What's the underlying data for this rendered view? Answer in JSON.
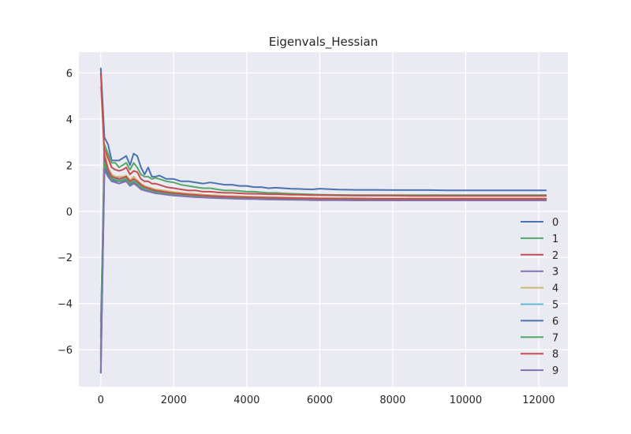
{
  "chart_data": {
    "type": "line",
    "title": "Eigenvals_Hessian",
    "xlabel": "",
    "ylabel": "",
    "xlim": [
      -600,
      12800
    ],
    "ylim": [
      -7.6,
      6.9
    ],
    "x_ticks": [
      0,
      2000,
      4000,
      6000,
      8000,
      10000,
      12000
    ],
    "y_ticks": [
      -6,
      -4,
      -2,
      0,
      2,
      4,
      6
    ],
    "x_tick_labels": [
      "0",
      "2000",
      "4000",
      "6000",
      "8000",
      "10000",
      "12000"
    ],
    "y_tick_labels": [
      "−6",
      "−4",
      "−2",
      "0",
      "2",
      "4",
      "6"
    ],
    "grid": true,
    "legend_position": "right",
    "x": [
      0,
      100,
      200,
      300,
      400,
      500,
      600,
      700,
      800,
      900,
      1000,
      1100,
      1200,
      1300,
      1400,
      1500,
      1600,
      1800,
      2000,
      2200,
      2400,
      2600,
      2800,
      3000,
      3200,
      3400,
      3600,
      3800,
      4000,
      4200,
      4400,
      4600,
      4800,
      5000,
      5200,
      5400,
      5600,
      5800,
      6000,
      6500,
      7000,
      7500,
      8000,
      8500,
      9000,
      9500,
      10000,
      10500,
      11000,
      11500,
      12000,
      12200
    ],
    "series": [
      {
        "name": "0",
        "color": "#4c72b0",
        "values": [
          6.2,
          3.2,
          2.9,
          2.2,
          2.2,
          2.2,
          2.3,
          2.4,
          2.0,
          2.5,
          2.4,
          1.9,
          1.6,
          1.9,
          1.5,
          1.5,
          1.55,
          1.4,
          1.4,
          1.3,
          1.3,
          1.25,
          1.2,
          1.25,
          1.2,
          1.15,
          1.15,
          1.1,
          1.1,
          1.05,
          1.05,
          1.0,
          1.02,
          1.0,
          0.98,
          0.97,
          0.96,
          0.95,
          0.98,
          0.94,
          0.93,
          0.93,
          0.92,
          0.92,
          0.92,
          0.91,
          0.91,
          0.91,
          0.91,
          0.91,
          0.91,
          0.91
        ]
      },
      {
        "name": "1",
        "color": "#55a868",
        "values": [
          -5.5,
          2.9,
          2.5,
          2.1,
          2.1,
          1.9,
          2.0,
          2.1,
          1.8,
          2.1,
          1.9,
          1.6,
          1.5,
          1.5,
          1.4,
          1.45,
          1.4,
          1.3,
          1.25,
          1.15,
          1.1,
          1.05,
          1.0,
          1.0,
          0.95,
          0.9,
          0.9,
          0.88,
          0.85,
          0.85,
          0.82,
          0.8,
          0.8,
          0.78,
          0.76,
          0.75,
          0.74,
          0.73,
          0.72,
          0.71,
          0.7,
          0.7,
          0.7,
          0.7,
          0.7,
          0.7,
          0.7,
          0.7,
          0.7,
          0.7,
          0.7,
          0.7
        ]
      },
      {
        "name": "2",
        "color": "#c44e52",
        "values": [
          -6.0,
          2.7,
          2.3,
          1.9,
          1.8,
          1.75,
          1.8,
          1.9,
          1.6,
          1.75,
          1.7,
          1.4,
          1.3,
          1.3,
          1.2,
          1.2,
          1.15,
          1.05,
          1.0,
          0.95,
          0.9,
          0.9,
          0.85,
          0.85,
          0.82,
          0.8,
          0.8,
          0.78,
          0.76,
          0.76,
          0.75,
          0.74,
          0.74,
          0.73,
          0.72,
          0.72,
          0.71,
          0.7,
          0.7,
          0.69,
          0.68,
          0.68,
          0.68,
          0.67,
          0.67,
          0.67,
          0.67,
          0.67,
          0.67,
          0.67,
          0.67,
          0.67
        ]
      },
      {
        "name": "3",
        "color": "#8172b2",
        "values": [
          -6.5,
          2.2,
          1.9,
          1.5,
          1.5,
          1.4,
          1.45,
          1.5,
          1.3,
          1.4,
          1.3,
          1.1,
          1.0,
          1.0,
          0.95,
          0.9,
          0.88,
          0.82,
          0.78,
          0.75,
          0.72,
          0.7,
          0.68,
          0.66,
          0.65,
          0.63,
          0.62,
          0.62,
          0.6,
          0.6,
          0.59,
          0.58,
          0.58,
          0.57,
          0.57,
          0.56,
          0.56,
          0.55,
          0.55,
          0.54,
          0.54,
          0.54,
          0.54,
          0.53,
          0.53,
          0.53,
          0.53,
          0.53,
          0.53,
          0.53,
          0.53,
          0.53
        ]
      },
      {
        "name": "4",
        "color": "#ccb974",
        "values": [
          5.4,
          2.6,
          1.9,
          1.6,
          1.5,
          1.5,
          1.5,
          1.55,
          1.35,
          1.5,
          1.35,
          1.2,
          1.1,
          1.05,
          1.0,
          0.95,
          0.93,
          0.88,
          0.84,
          0.8,
          0.77,
          0.75,
          0.72,
          0.7,
          0.69,
          0.67,
          0.66,
          0.65,
          0.64,
          0.63,
          0.62,
          0.61,
          0.61,
          0.6,
          0.6,
          0.59,
          0.59,
          0.58,
          0.58,
          0.57,
          0.57,
          0.56,
          0.56,
          0.56,
          0.56,
          0.56,
          0.56,
          0.56,
          0.56,
          0.56,
          0.56,
          0.56
        ]
      },
      {
        "name": "5",
        "color": "#64b5cd",
        "values": [
          -6.2,
          2.0,
          1.7,
          1.45,
          1.4,
          1.35,
          1.4,
          1.45,
          1.25,
          1.35,
          1.25,
          1.1,
          1.0,
          0.97,
          0.92,
          0.88,
          0.85,
          0.8,
          0.76,
          0.73,
          0.7,
          0.68,
          0.66,
          0.64,
          0.63,
          0.61,
          0.6,
          0.6,
          0.58,
          0.58,
          0.57,
          0.56,
          0.56,
          0.55,
          0.55,
          0.54,
          0.54,
          0.53,
          0.53,
          0.52,
          0.52,
          0.52,
          0.52,
          0.51,
          0.51,
          0.51,
          0.51,
          0.51,
          0.51,
          0.51,
          0.51,
          0.51
        ]
      },
      {
        "name": "6",
        "color": "#4c72b0",
        "values": [
          -7.0,
          1.9,
          1.6,
          1.35,
          1.3,
          1.3,
          1.3,
          1.35,
          1.15,
          1.25,
          1.15,
          1.0,
          0.95,
          0.9,
          0.86,
          0.82,
          0.8,
          0.75,
          0.72,
          0.69,
          0.66,
          0.64,
          0.62,
          0.6,
          0.59,
          0.58,
          0.57,
          0.56,
          0.55,
          0.55,
          0.54,
          0.53,
          0.53,
          0.52,
          0.52,
          0.51,
          0.51,
          0.5,
          0.5,
          0.5,
          0.5,
          0.49,
          0.49,
          0.49,
          0.49,
          0.49,
          0.49,
          0.49,
          0.49,
          0.49,
          0.49,
          0.49
        ]
      },
      {
        "name": "7",
        "color": "#55a868",
        "values": [
          -4.8,
          2.1,
          1.75,
          1.4,
          1.35,
          1.3,
          1.35,
          1.4,
          1.2,
          1.3,
          1.2,
          1.05,
          0.95,
          0.92,
          0.88,
          0.85,
          0.82,
          0.77,
          0.74,
          0.71,
          0.68,
          0.66,
          0.64,
          0.62,
          0.61,
          0.59,
          0.58,
          0.58,
          0.57,
          0.56,
          0.55,
          0.55,
          0.54,
          0.54,
          0.53,
          0.53,
          0.52,
          0.52,
          0.52,
          0.51,
          0.51,
          0.51,
          0.51,
          0.5,
          0.5,
          0.5,
          0.5,
          0.5,
          0.5,
          0.5,
          0.5,
          0.5
        ]
      },
      {
        "name": "8",
        "color": "#c44e52",
        "values": [
          6.0,
          2.4,
          1.8,
          1.5,
          1.45,
          1.4,
          1.45,
          1.5,
          1.3,
          1.4,
          1.3,
          1.15,
          1.05,
          1.0,
          0.95,
          0.9,
          0.88,
          0.83,
          0.79,
          0.76,
          0.73,
          0.71,
          0.69,
          0.67,
          0.65,
          0.64,
          0.63,
          0.62,
          0.61,
          0.6,
          0.6,
          0.59,
          0.58,
          0.58,
          0.57,
          0.57,
          0.56,
          0.56,
          0.55,
          0.55,
          0.55,
          0.54,
          0.54,
          0.54,
          0.54,
          0.54,
          0.54,
          0.54,
          0.54,
          0.54,
          0.54,
          0.54
        ]
      },
      {
        "name": "9",
        "color": "#8172b2",
        "values": [
          -7.0,
          1.8,
          1.5,
          1.3,
          1.25,
          1.2,
          1.25,
          1.3,
          1.1,
          1.2,
          1.1,
          0.95,
          0.9,
          0.86,
          0.82,
          0.78,
          0.76,
          0.72,
          0.68,
          0.66,
          0.63,
          0.61,
          0.6,
          0.58,
          0.57,
          0.56,
          0.55,
          0.54,
          0.53,
          0.53,
          0.52,
          0.51,
          0.51,
          0.5,
          0.5,
          0.49,
          0.49,
          0.48,
          0.48,
          0.48,
          0.47,
          0.47,
          0.47,
          0.47,
          0.47,
          0.47,
          0.47,
          0.47,
          0.47,
          0.47,
          0.47,
          0.47
        ]
      }
    ]
  }
}
